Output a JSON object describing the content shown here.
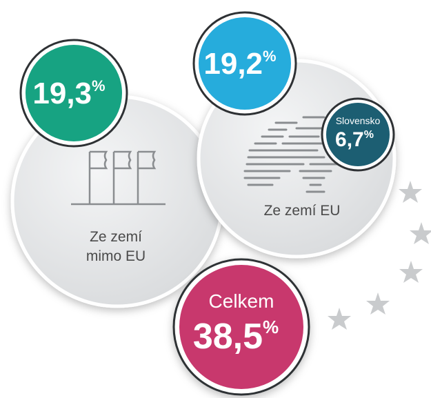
{
  "outside_eu": {
    "number": "19,3",
    "unit": "%",
    "label_lines": [
      "Ze zemí",
      "mimo EU"
    ]
  },
  "eu": {
    "number": "19,2",
    "unit": "%",
    "label": "Ze zemí EU"
  },
  "slovakia": {
    "title": "Slovensko",
    "number": "6,7",
    "unit": "%"
  },
  "total": {
    "title": "Celkem",
    "number": "38,5",
    "unit": "%"
  }
}
